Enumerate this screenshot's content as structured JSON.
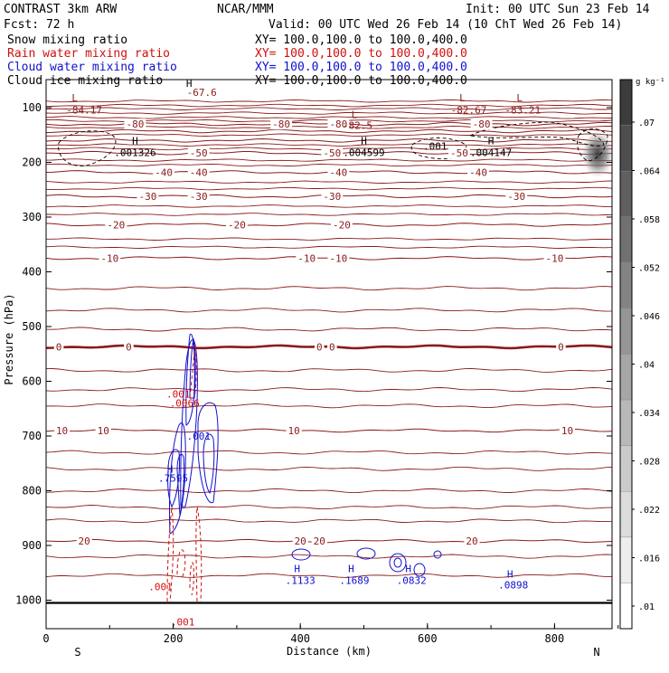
{
  "chart_data": {
    "type": "contour",
    "header": {
      "model": "CONTRAST   3km ARW",
      "center": "NCAR/MMM",
      "init": "Init: 00 UTC Sun 23 Feb 14",
      "fcst": "Fcst:   72 h",
      "valid": "Valid: 00 UTC Wed 26 Feb 14 (10 ChT Wed 26 Feb 14)"
    },
    "legend": [
      {
        "label": "Snow mixing ratio",
        "xy": "XY=  100.0,100.0 to 100.0,400.0",
        "color": "#000000"
      },
      {
        "label": "Rain water mixing ratio",
        "xy": "XY=  100.0,100.0 to 100.0,400.0",
        "color": "#d01010"
      },
      {
        "label": "Cloud water mixing ratio",
        "xy": "XY=  100.0,100.0 to 100.0,400.0",
        "color": "#1010d0"
      },
      {
        "label": "Cloud ice mixing ratio",
        "xy": "XY=  100.0,100.0 to 100.0,400.0",
        "color": "#000000"
      }
    ],
    "xlabel": "Distance (km)",
    "ylabel": "Pressure (hPa)",
    "xlim": [
      0,
      900
    ],
    "ylim": [
      1040,
      50
    ],
    "x_ticks": [
      0,
      200,
      400,
      600,
      800
    ],
    "y_ticks": [
      100,
      200,
      300,
      400,
      500,
      600,
      700,
      800,
      900,
      1000
    ],
    "endpoints": {
      "left": "S",
      "right": "N"
    },
    "colorbar": {
      "units": "g kg⁻¹",
      "ticks": [
        ".01",
        ".016",
        ".022",
        ".028",
        ".034",
        ".04",
        ".046",
        ".052",
        ".058",
        ".064",
        ".07"
      ]
    },
    "temperature_isotherms": [
      {
        "value": -80,
        "p": 130,
        "labels": [
          {
            "x": 140,
            "text": "-80"
          },
          {
            "x": 370,
            "text": "-80"
          },
          {
            "x": 460,
            "text": "-80"
          },
          {
            "x": 685,
            "text": "-80"
          }
        ]
      },
      {
        "value": -70,
        "p": 143,
        "labels": []
      },
      {
        "value": -60,
        "p": 160,
        "labels": []
      },
      {
        "value": -50,
        "p": 183,
        "labels": [
          {
            "x": 240,
            "text": "-50"
          },
          {
            "x": 450,
            "text": "-50"
          },
          {
            "x": 650,
            "text": "-50"
          }
        ]
      },
      {
        "value": -40,
        "p": 218,
        "labels": [
          {
            "x": 185,
            "text": "-40"
          },
          {
            "x": 240,
            "text": "-40"
          },
          {
            "x": 460,
            "text": "-40"
          },
          {
            "x": 680,
            "text": "-40"
          }
        ]
      },
      {
        "value": -30,
        "p": 262,
        "labels": [
          {
            "x": 160,
            "text": "-30"
          },
          {
            "x": 240,
            "text": "-30"
          },
          {
            "x": 450,
            "text": "-30"
          },
          {
            "x": 740,
            "text": "-30"
          }
        ]
      },
      {
        "value": -20,
        "p": 314,
        "labels": [
          {
            "x": 110,
            "text": "-20"
          },
          {
            "x": 300,
            "text": "-20"
          },
          {
            "x": 465,
            "text": "-20"
          }
        ]
      },
      {
        "value": -10,
        "p": 375,
        "labels": [
          {
            "x": 100,
            "text": "-10"
          },
          {
            "x": 410,
            "text": "-10"
          },
          {
            "x": 460,
            "text": "-10"
          },
          {
            "x": 800,
            "text": "-10"
          }
        ]
      },
      {
        "value": 0,
        "p": 537,
        "labels": [
          {
            "x": 20,
            "text": "0"
          },
          {
            "x": 130,
            "text": "0"
          },
          {
            "x": 430,
            "text": "0"
          },
          {
            "x": 450,
            "text": "0"
          },
          {
            "x": 810,
            "text": "0"
          }
        ]
      },
      {
        "value": 10,
        "p": 690,
        "labels": [
          {
            "x": 25,
            "text": "10"
          },
          {
            "x": 90,
            "text": "10"
          },
          {
            "x": 390,
            "text": "10"
          },
          {
            "x": 820,
            "text": "10"
          }
        ]
      },
      {
        "value": 20,
        "p": 892,
        "labels": [
          {
            "x": 60,
            "text": "20"
          },
          {
            "x": 400,
            "text": "20"
          },
          {
            "x": 430,
            "text": "20"
          },
          {
            "x": 670,
            "text": "20"
          }
        ]
      }
    ],
    "annotations": [
      {
        "text": "L",
        "x": 45,
        "p": 82,
        "color": "#8b1a1a"
      },
      {
        "text": "-84.17",
        "x": 60,
        "p": 104,
        "color": "#8b1a1a"
      },
      {
        "text": "H",
        "x": 225,
        "p": 55,
        "color": "#000000"
      },
      {
        "text": "-67.6",
        "x": 245,
        "p": 72,
        "color": "#8b1a1a"
      },
      {
        "text": "L",
        "x": 485,
        "p": 112,
        "color": "#8b1a1a"
      },
      {
        "text": "-82.5",
        "x": 490,
        "p": 132,
        "color": "#8b1a1a"
      },
      {
        "text": "L",
        "x": 655,
        "p": 82,
        "color": "#8b1a1a"
      },
      {
        "text": "-82.67",
        "x": 665,
        "p": 104,
        "color": "#8b1a1a"
      },
      {
        "text": "L",
        "x": 745,
        "p": 82,
        "color": "#8b1a1a"
      },
      {
        "text": "-83.21",
        "x": 750,
        "p": 104,
        "color": "#8b1a1a"
      },
      {
        "text": "H",
        "x": 140,
        "p": 160,
        "color": "#000000"
      },
      {
        "text": ".001326",
        "x": 140,
        "p": 182,
        "color": "#000000"
      },
      {
        "text": "H",
        "x": 500,
        "p": 160,
        "color": "#000000"
      },
      {
        "text": ".004599",
        "x": 500,
        "p": 182,
        "color": "#000000"
      },
      {
        "text": ".001",
        "x": 612,
        "p": 170,
        "color": "#000000"
      },
      {
        "text": "H",
        "x": 700,
        "p": 160,
        "color": "#000000"
      },
      {
        "text": ".004147",
        "x": 700,
        "p": 182,
        "color": "#000000"
      },
      {
        "text": ".001",
        "x": 208,
        "p": 623,
        "color": "#d01010"
      },
      {
        "text": ".0066",
        "x": 218,
        "p": 640,
        "color": "#d01010"
      },
      {
        "text": ".001",
        "x": 240,
        "p": 700,
        "color": "#1010d0"
      },
      {
        "text": "H",
        "x": 195,
        "p": 760,
        "color": "#1010d0"
      },
      {
        "text": ".7595",
        "x": 200,
        "p": 777,
        "color": "#1010d0"
      },
      {
        "text": "H",
        "x": 395,
        "p": 942,
        "color": "#1010d0"
      },
      {
        "text": ".1133",
        "x": 400,
        "p": 964,
        "color": "#1010d0"
      },
      {
        "text": "H",
        "x": 480,
        "p": 942,
        "color": "#1010d0"
      },
      {
        "text": ".1689",
        "x": 485,
        "p": 964,
        "color": "#1010d0"
      },
      {
        "text": "H",
        "x": 570,
        "p": 942,
        "color": "#1010d0"
      },
      {
        "text": ".0832",
        "x": 575,
        "p": 964,
        "color": "#1010d0"
      },
      {
        "text": "H",
        "x": 730,
        "p": 952,
        "color": "#1010d0"
      },
      {
        "text": ".0898",
        "x": 735,
        "p": 972,
        "color": "#1010d0"
      },
      {
        "text": ".001",
        "x": 180,
        "p": 975,
        "color": "#d01010"
      },
      {
        "text": ".001",
        "x": 215,
        "p": 1040,
        "color": "#d01010"
      }
    ]
  }
}
